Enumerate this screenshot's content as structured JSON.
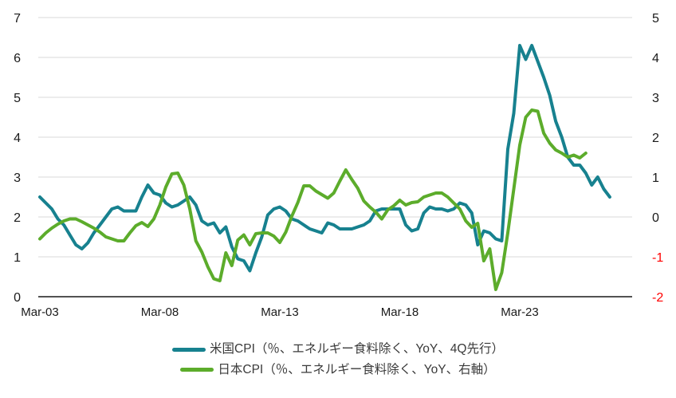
{
  "chart_data": {
    "type": "line",
    "title": "",
    "x_start": "Mar-03",
    "x_frequency": "quarterly",
    "x_tick_labels": [
      "Mar-03",
      "Mar-08",
      "Mar-13",
      "Mar-18",
      "Mar-23"
    ],
    "grid": "horizontal",
    "legend_position": "bottom",
    "left_axis": {
      "min": 0,
      "max": 7,
      "ticks": [
        7,
        6,
        5,
        4,
        3,
        2,
        1,
        0
      ]
    },
    "right_axis": {
      "min": -2,
      "max": 5,
      "ticks": [
        5,
        4,
        3,
        2,
        1,
        0,
        -1,
        -2
      ],
      "negative_tick_color": "#FF0000"
    },
    "series": [
      {
        "name": "米国CPI（％、エネルギー食料除く、YoY、4Q先行）",
        "color": "#17818F",
        "axis": "left",
        "values": [
          2.5,
          2.35,
          2.2,
          1.95,
          1.8,
          1.55,
          1.3,
          1.2,
          1.35,
          1.6,
          1.8,
          2.0,
          2.2,
          2.25,
          2.15,
          2.15,
          2.15,
          2.5,
          2.8,
          2.6,
          2.55,
          2.35,
          2.25,
          2.3,
          2.4,
          2.5,
          2.3,
          1.9,
          1.8,
          1.85,
          1.6,
          1.75,
          1.25,
          0.95,
          0.9,
          0.65,
          1.1,
          1.5,
          2.05,
          2.2,
          2.25,
          2.15,
          1.95,
          1.9,
          1.8,
          1.7,
          1.65,
          1.6,
          1.85,
          1.8,
          1.7,
          1.7,
          1.7,
          1.75,
          1.8,
          1.9,
          2.15,
          2.2,
          2.2,
          2.2,
          2.2,
          1.8,
          1.65,
          1.7,
          2.1,
          2.25,
          2.2,
          2.2,
          2.15,
          2.2,
          2.35,
          2.3,
          2.1,
          1.3,
          1.65,
          1.6,
          1.45,
          1.4,
          3.7,
          4.6,
          6.3,
          5.95,
          6.3,
          5.9,
          5.5,
          5.05,
          4.4,
          4.0,
          3.5,
          3.3,
          3.3,
          3.1,
          2.8,
          3.0,
          2.7,
          2.5
        ]
      },
      {
        "name": "日本CPI（％、エネルギー食料除く、YoY、右軸）",
        "color": "#5CAC2B",
        "axis": "right",
        "values": [
          -0.55,
          -0.4,
          -0.28,
          -0.18,
          -0.1,
          -0.05,
          -0.05,
          -0.12,
          -0.2,
          -0.28,
          -0.38,
          -0.5,
          -0.55,
          -0.6,
          -0.6,
          -0.4,
          -0.22,
          -0.14,
          -0.24,
          -0.05,
          0.3,
          0.75,
          1.08,
          1.1,
          0.8,
          0.2,
          -0.6,
          -0.88,
          -1.25,
          -1.55,
          -1.6,
          -0.9,
          -1.22,
          -0.58,
          -0.45,
          -0.7,
          -0.42,
          -0.4,
          -0.4,
          -0.48,
          -0.64,
          -0.38,
          0.02,
          0.36,
          0.78,
          0.78,
          0.65,
          0.56,
          0.47,
          0.6,
          0.9,
          1.18,
          0.94,
          0.72,
          0.4,
          0.25,
          0.12,
          -0.05,
          0.18,
          0.28,
          0.42,
          0.3,
          0.36,
          0.38,
          0.5,
          0.55,
          0.6,
          0.6,
          0.5,
          0.35,
          0.2,
          -0.1,
          -0.26,
          -0.16,
          -1.1,
          -0.8,
          -1.82,
          -1.4,
          -0.4,
          0.7,
          1.8,
          2.5,
          2.68,
          2.65,
          2.1,
          1.85,
          1.68,
          1.6,
          1.5,
          1.55,
          1.48,
          1.6
        ]
      }
    ]
  },
  "colors": {
    "grid": "#D9D9D9",
    "axis_line": "#1a1a1a",
    "tick_label": "#1a1a1a",
    "negative_label": "#FF0000",
    "legend_text": "#3a3a3a"
  }
}
